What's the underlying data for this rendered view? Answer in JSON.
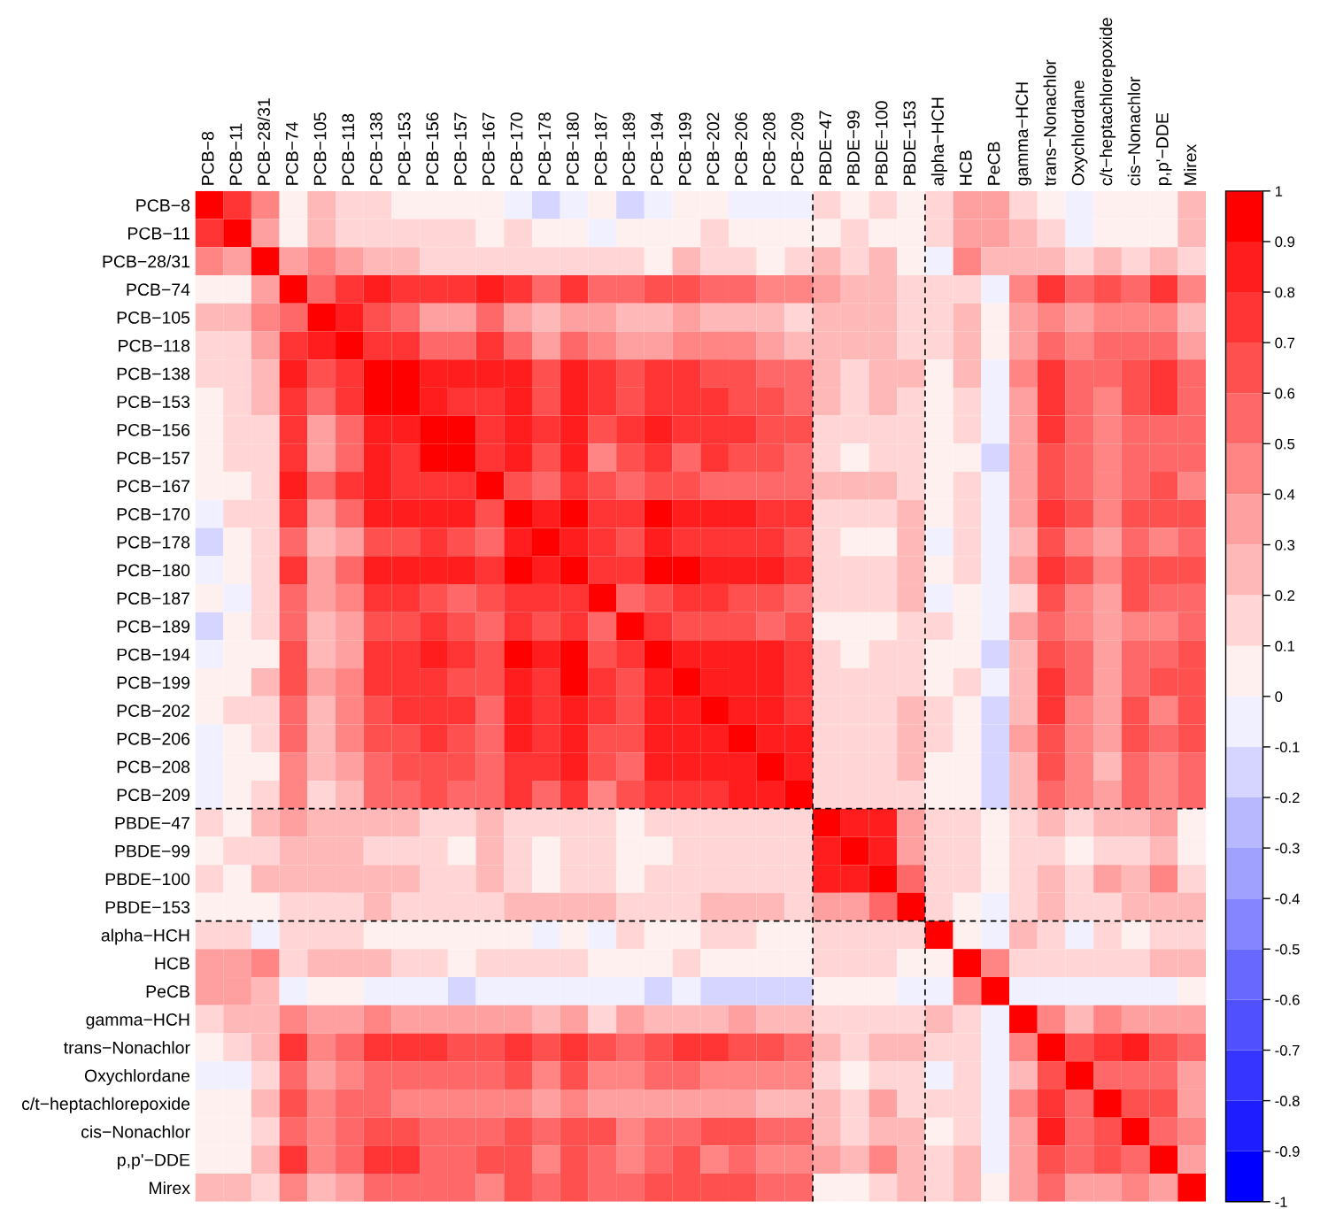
{
  "chart_data": {
    "type": "heatmap",
    "categories": [
      "PCB−8",
      "PCB−11",
      "PCB−28/31",
      "PCB−74",
      "PCB−105",
      "PCB−118",
      "PCB−138",
      "PCB−153",
      "PCB−156",
      "PCB−157",
      "PCB−167",
      "PCB−170",
      "PCB−178",
      "PCB−180",
      "PCB−187",
      "PCB−189",
      "PCB−194",
      "PCB−199",
      "PCB−202",
      "PCB−206",
      "PCB−208",
      "PCB−209",
      "PBDE−47",
      "PBDE−99",
      "PBDE−100",
      "PBDE−153",
      "alpha−HCH",
      "HCB",
      "PeCB",
      "gamma−HCH",
      "trans−Nonachlor",
      "Oxychlordane",
      "c/t−heptachlorepoxide",
      "cis−Nonachlor",
      "p,p'−DDE",
      "Mirex"
    ],
    "y_categories": [
      "PCB−8",
      "PCB−11",
      "PCB−28/31",
      "PCB−74",
      "PCB−105",
      "PCB−118",
      "PCB−138",
      "PCB−153",
      "PCB−156",
      "PCB−157",
      "PCB−167",
      "PCB−170",
      "PCB−178",
      "PCB−180",
      "PCB−187",
      "PCB−189",
      "PCB−194",
      "PCB−199",
      "PCB−202",
      "PCB−206",
      "PCB−208",
      "PCB−209",
      "PBDE−47",
      "PBDE−99",
      "PBDE−100",
      "PBDE−153",
      "alpha−HCH",
      "HCB",
      "PeCB",
      "gamma−HCH",
      "trans−Nonachlor",
      "Oxychlordane",
      "c/t−heptachlorepoxide",
      "cis−Nonachlor",
      "p,p'−DDE",
      "Mirex"
    ],
    "cells": [
      [
        1,
        0.75,
        0.45,
        0.05,
        0.25,
        0.15,
        0.15,
        0.05,
        0.05,
        0.05,
        0.05,
        -0.05,
        -0.15,
        -0.05,
        0.05,
        -0.15,
        -0.05,
        0.05,
        0.05,
        -0.05,
        -0.05,
        -0.05,
        0.15,
        0.05,
        0.15,
        0.05,
        0.15,
        0.35,
        0.35,
        0.15,
        0.05,
        -0.05,
        0.05,
        0.05,
        0.05,
        0.25
      ],
      [
        0.75,
        1,
        0.35,
        0.05,
        0.25,
        0.15,
        0.15,
        0.15,
        0.15,
        0.15,
        0.05,
        0.15,
        0.05,
        0.05,
        -0.05,
        0.05,
        0.05,
        0.05,
        0.15,
        0.05,
        0.05,
        0.05,
        0.05,
        0.15,
        0.05,
        0.05,
        0.15,
        0.35,
        0.35,
        0.25,
        0.15,
        -0.05,
        0.05,
        0.05,
        0.05,
        0.25
      ],
      [
        0.45,
        0.35,
        1,
        0.35,
        0.45,
        0.35,
        0.25,
        0.25,
        0.15,
        0.15,
        0.15,
        0.15,
        0.15,
        0.15,
        0.15,
        0.15,
        0.05,
        0.25,
        0.15,
        0.15,
        0.05,
        0.15,
        0.25,
        0.15,
        0.25,
        0.05,
        -0.05,
        0.45,
        0.25,
        0.25,
        0.25,
        0.15,
        0.25,
        0.15,
        0.25,
        0.15
      ],
      [
        0.05,
        0.05,
        0.35,
        1,
        0.55,
        0.75,
        0.85,
        0.75,
        0.75,
        0.75,
        0.85,
        0.75,
        0.55,
        0.75,
        0.55,
        0.55,
        0.65,
        0.65,
        0.55,
        0.55,
        0.45,
        0.45,
        0.35,
        0.25,
        0.25,
        0.15,
        0.15,
        0.15,
        -0.05,
        0.45,
        0.75,
        0.55,
        0.65,
        0.55,
        0.75,
        0.45
      ],
      [
        0.25,
        0.25,
        0.45,
        0.55,
        1,
        0.85,
        0.65,
        0.55,
        0.35,
        0.35,
        0.55,
        0.35,
        0.25,
        0.35,
        0.35,
        0.25,
        0.25,
        0.35,
        0.25,
        0.25,
        0.25,
        0.15,
        0.25,
        0.25,
        0.25,
        0.15,
        0.15,
        0.25,
        0.05,
        0.35,
        0.45,
        0.35,
        0.45,
        0.45,
        0.45,
        0.25
      ],
      [
        0.15,
        0.15,
        0.35,
        0.75,
        0.85,
        1,
        0.75,
        0.75,
        0.55,
        0.55,
        0.75,
        0.55,
        0.35,
        0.55,
        0.45,
        0.35,
        0.35,
        0.45,
        0.45,
        0.45,
        0.35,
        0.25,
        0.25,
        0.25,
        0.25,
        0.15,
        0.15,
        0.25,
        0.05,
        0.35,
        0.55,
        0.45,
        0.55,
        0.55,
        0.55,
        0.35
      ],
      [
        0.15,
        0.15,
        0.25,
        0.85,
        0.65,
        0.75,
        1,
        0.95,
        0.85,
        0.85,
        0.85,
        0.85,
        0.65,
        0.85,
        0.75,
        0.65,
        0.75,
        0.75,
        0.65,
        0.65,
        0.55,
        0.55,
        0.25,
        0.15,
        0.25,
        0.25,
        0.05,
        0.25,
        -0.05,
        0.45,
        0.75,
        0.55,
        0.55,
        0.65,
        0.75,
        0.55
      ],
      [
        0.05,
        0.15,
        0.25,
        0.75,
        0.55,
        0.75,
        0.95,
        1,
        0.85,
        0.75,
        0.75,
        0.85,
        0.65,
        0.85,
        0.75,
        0.65,
        0.75,
        0.75,
        0.75,
        0.65,
        0.65,
        0.55,
        0.25,
        0.15,
        0.25,
        0.15,
        0.05,
        0.15,
        -0.05,
        0.35,
        0.75,
        0.55,
        0.45,
        0.65,
        0.75,
        0.55
      ],
      [
        0.05,
        0.15,
        0.15,
        0.75,
        0.35,
        0.55,
        0.85,
        0.85,
        1,
        0.95,
        0.75,
        0.85,
        0.75,
        0.85,
        0.65,
        0.75,
        0.85,
        0.75,
        0.75,
        0.75,
        0.65,
        0.65,
        0.15,
        0.15,
        0.15,
        0.15,
        0.05,
        0.15,
        -0.05,
        0.35,
        0.75,
        0.55,
        0.45,
        0.55,
        0.55,
        0.55
      ],
      [
        0.05,
        0.15,
        0.15,
        0.75,
        0.35,
        0.55,
        0.85,
        0.75,
        0.95,
        1,
        0.75,
        0.85,
        0.65,
        0.85,
        0.45,
        0.65,
        0.75,
        0.55,
        0.75,
        0.65,
        0.65,
        0.55,
        0.15,
        0.05,
        0.15,
        0.15,
        0.05,
        0.05,
        -0.15,
        0.35,
        0.65,
        0.55,
        0.45,
        0.55,
        0.55,
        0.55
      ],
      [
        0.05,
        0.05,
        0.15,
        0.85,
        0.55,
        0.75,
        0.85,
        0.75,
        0.75,
        0.75,
        1,
        0.65,
        0.55,
        0.75,
        0.65,
        0.55,
        0.65,
        0.65,
        0.55,
        0.55,
        0.55,
        0.55,
        0.25,
        0.25,
        0.25,
        0.15,
        0.05,
        0.15,
        -0.05,
        0.35,
        0.65,
        0.55,
        0.45,
        0.55,
        0.65,
        0.45
      ],
      [
        -0.05,
        0.15,
        0.15,
        0.75,
        0.35,
        0.55,
        0.85,
        0.85,
        0.85,
        0.85,
        0.65,
        1,
        0.85,
        0.95,
        0.75,
        0.75,
        0.95,
        0.85,
        0.85,
        0.85,
        0.75,
        0.75,
        0.15,
        0.15,
        0.15,
        0.25,
        0.05,
        0.15,
        -0.05,
        0.35,
        0.75,
        0.65,
        0.45,
        0.65,
        0.65,
        0.65
      ],
      [
        -0.15,
        0.05,
        0.15,
        0.55,
        0.25,
        0.35,
        0.65,
        0.65,
        0.75,
        0.65,
        0.55,
        0.85,
        1,
        0.85,
        0.75,
        0.65,
        0.85,
        0.75,
        0.75,
        0.75,
        0.75,
        0.65,
        0.15,
        0.05,
        0.05,
        0.25,
        -0.05,
        0.15,
        -0.05,
        0.25,
        0.65,
        0.45,
        0.35,
        0.55,
        0.45,
        0.55
      ],
      [
        -0.05,
        0.05,
        0.15,
        0.75,
        0.35,
        0.55,
        0.85,
        0.85,
        0.85,
        0.85,
        0.75,
        0.95,
        0.85,
        1,
        0.75,
        0.75,
        0.95,
        0.95,
        0.85,
        0.85,
        0.85,
        0.75,
        0.15,
        0.15,
        0.15,
        0.25,
        0.05,
        0.15,
        -0.05,
        0.35,
        0.75,
        0.65,
        0.45,
        0.65,
        0.65,
        0.65
      ],
      [
        0.05,
        -0.05,
        0.15,
        0.55,
        0.35,
        0.45,
        0.75,
        0.75,
        0.65,
        0.55,
        0.65,
        0.75,
        0.75,
        0.75,
        1,
        0.55,
        0.65,
        0.75,
        0.75,
        0.65,
        0.65,
        0.55,
        0.15,
        0.15,
        0.15,
        0.25,
        -0.05,
        0.05,
        -0.05,
        0.15,
        0.65,
        0.45,
        0.35,
        0.65,
        0.55,
        0.55
      ],
      [
        -0.15,
        0.05,
        0.15,
        0.55,
        0.25,
        0.35,
        0.65,
        0.65,
        0.75,
        0.65,
        0.55,
        0.75,
        0.65,
        0.75,
        0.55,
        1,
        0.75,
        0.65,
        0.65,
        0.65,
        0.55,
        0.65,
        0.05,
        0.05,
        0.05,
        0.15,
        0.15,
        0.05,
        -0.05,
        0.35,
        0.55,
        0.45,
        0.35,
        0.45,
        0.45,
        0.55
      ],
      [
        -0.05,
        0.05,
        0.05,
        0.65,
        0.25,
        0.35,
        0.75,
        0.75,
        0.85,
        0.75,
        0.65,
        0.95,
        0.85,
        0.95,
        0.65,
        0.75,
        1,
        0.85,
        0.85,
        0.85,
        0.85,
        0.75,
        0.15,
        0.05,
        0.15,
        0.15,
        0.05,
        0.05,
        -0.15,
        0.25,
        0.65,
        0.55,
        0.35,
        0.55,
        0.55,
        0.65
      ],
      [
        0.05,
        0.05,
        0.25,
        0.65,
        0.35,
        0.45,
        0.75,
        0.75,
        0.75,
        0.65,
        0.65,
        0.85,
        0.75,
        0.95,
        0.75,
        0.65,
        0.85,
        1,
        0.85,
        0.85,
        0.85,
        0.75,
        0.15,
        0.15,
        0.15,
        0.15,
        0.05,
        0.15,
        -0.05,
        0.25,
        0.75,
        0.55,
        0.35,
        0.55,
        0.65,
        0.65
      ],
      [
        0.05,
        0.15,
        0.15,
        0.55,
        0.25,
        0.45,
        0.65,
        0.75,
        0.75,
        0.75,
        0.55,
        0.85,
        0.75,
        0.85,
        0.75,
        0.65,
        0.85,
        0.85,
        1,
        0.85,
        0.85,
        0.75,
        0.15,
        0.15,
        0.15,
        0.25,
        0.15,
        0.05,
        -0.15,
        0.25,
        0.75,
        0.45,
        0.35,
        0.65,
        0.45,
        0.65
      ],
      [
        -0.05,
        0.05,
        0.15,
        0.55,
        0.25,
        0.45,
        0.65,
        0.65,
        0.75,
        0.65,
        0.55,
        0.85,
        0.75,
        0.85,
        0.65,
        0.65,
        0.85,
        0.85,
        0.85,
        1,
        0.85,
        0.85,
        0.15,
        0.15,
        0.15,
        0.25,
        0.15,
        0.05,
        -0.15,
        0.35,
        0.65,
        0.45,
        0.35,
        0.65,
        0.55,
        0.65
      ],
      [
        -0.05,
        0.05,
        0.05,
        0.45,
        0.25,
        0.35,
        0.55,
        0.65,
        0.65,
        0.65,
        0.55,
        0.75,
        0.75,
        0.85,
        0.65,
        0.55,
        0.85,
        0.85,
        0.85,
        0.85,
        1,
        0.85,
        0.15,
        0.15,
        0.15,
        0.25,
        0.05,
        0.05,
        -0.15,
        0.25,
        0.65,
        0.45,
        0.25,
        0.55,
        0.45,
        0.55
      ],
      [
        -0.05,
        0.05,
        0.15,
        0.45,
        0.15,
        0.25,
        0.55,
        0.55,
        0.65,
        0.55,
        0.55,
        0.75,
        0.55,
        0.75,
        0.45,
        0.65,
        0.75,
        0.75,
        0.75,
        0.85,
        0.85,
        1,
        0.15,
        0.15,
        0.15,
        0.15,
        0.05,
        0.05,
        -0.15,
        0.25,
        0.55,
        0.45,
        0.35,
        0.55,
        0.45,
        0.55
      ],
      [
        0.15,
        0.05,
        0.25,
        0.35,
        0.25,
        0.25,
        0.25,
        0.25,
        0.15,
        0.15,
        0.25,
        0.15,
        0.15,
        0.15,
        0.15,
        0.05,
        0.15,
        0.15,
        0.15,
        0.15,
        0.15,
        0.15,
        1,
        0.85,
        0.85,
        0.35,
        0.15,
        0.15,
        0.05,
        0.15,
        0.25,
        0.15,
        0.25,
        0.25,
        0.35,
        0.05
      ],
      [
        0.05,
        0.15,
        0.15,
        0.25,
        0.25,
        0.25,
        0.15,
        0.15,
        0.15,
        0.05,
        0.25,
        0.15,
        0.05,
        0.15,
        0.15,
        0.05,
        0.05,
        0.15,
        0.15,
        0.15,
        0.15,
        0.15,
        0.85,
        1,
        0.85,
        0.35,
        0.15,
        0.15,
        0.05,
        0.15,
        0.15,
        0.05,
        0.15,
        0.15,
        0.25,
        0.05
      ],
      [
        0.15,
        0.05,
        0.25,
        0.25,
        0.25,
        0.25,
        0.25,
        0.25,
        0.15,
        0.15,
        0.25,
        0.15,
        0.05,
        0.15,
        0.15,
        0.05,
        0.15,
        0.15,
        0.15,
        0.15,
        0.15,
        0.15,
        0.85,
        0.85,
        1,
        0.55,
        0.15,
        0.15,
        0.05,
        0.15,
        0.25,
        0.15,
        0.35,
        0.25,
        0.45,
        0.15
      ],
      [
        0.05,
        0.05,
        0.05,
        0.15,
        0.15,
        0.15,
        0.25,
        0.15,
        0.15,
        0.15,
        0.15,
        0.25,
        0.25,
        0.25,
        0.25,
        0.15,
        0.15,
        0.15,
        0.25,
        0.25,
        0.25,
        0.15,
        0.35,
        0.35,
        0.55,
        1,
        0.15,
        0.05,
        -0.05,
        0.15,
        0.25,
        0.15,
        0.15,
        0.25,
        0.25,
        0.25
      ],
      [
        0.15,
        0.15,
        -0.05,
        0.15,
        0.15,
        0.15,
        0.05,
        0.05,
        0.05,
        0.05,
        0.05,
        0.05,
        -0.05,
        0.05,
        -0.05,
        0.15,
        0.05,
        0.05,
        0.15,
        0.15,
        0.05,
        0.05,
        0.15,
        0.15,
        0.15,
        0.15,
        1,
        0.05,
        -0.05,
        0.25,
        0.15,
        -0.05,
        0.15,
        0.05,
        0.15,
        0.15
      ],
      [
        0.35,
        0.35,
        0.45,
        0.15,
        0.25,
        0.25,
        0.25,
        0.15,
        0.15,
        0.05,
        0.15,
        0.15,
        0.15,
        0.15,
        0.05,
        0.05,
        0.05,
        0.15,
        0.05,
        0.05,
        0.05,
        0.05,
        0.15,
        0.15,
        0.15,
        0.05,
        0.05,
        1,
        0.45,
        0.15,
        0.15,
        0.15,
        0.15,
        0.15,
        0.25,
        0.25
      ],
      [
        0.35,
        0.35,
        0.25,
        -0.05,
        0.05,
        0.05,
        -0.05,
        -0.05,
        -0.05,
        -0.15,
        -0.05,
        -0.05,
        -0.05,
        -0.05,
        -0.05,
        -0.05,
        -0.15,
        -0.05,
        -0.15,
        -0.15,
        -0.15,
        -0.15,
        0.05,
        0.05,
        0.05,
        -0.05,
        -0.05,
        0.45,
        1,
        -0.05,
        -0.05,
        -0.05,
        -0.05,
        -0.05,
        -0.05,
        0.05
      ],
      [
        0.15,
        0.25,
        0.25,
        0.45,
        0.35,
        0.35,
        0.45,
        0.35,
        0.35,
        0.35,
        0.35,
        0.35,
        0.25,
        0.35,
        0.15,
        0.35,
        0.25,
        0.25,
        0.25,
        0.35,
        0.25,
        0.25,
        0.15,
        0.15,
        0.15,
        0.15,
        0.25,
        0.15,
        -0.05,
        1,
        0.45,
        0.25,
        0.45,
        0.35,
        0.35,
        0.35
      ],
      [
        0.05,
        0.15,
        0.25,
        0.75,
        0.45,
        0.55,
        0.75,
        0.75,
        0.75,
        0.65,
        0.65,
        0.75,
        0.65,
        0.75,
        0.65,
        0.55,
        0.65,
        0.75,
        0.75,
        0.65,
        0.65,
        0.55,
        0.25,
        0.15,
        0.25,
        0.25,
        0.15,
        0.15,
        -0.05,
        0.45,
        1,
        0.65,
        0.75,
        0.85,
        0.65,
        0.55
      ],
      [
        -0.05,
        -0.05,
        0.15,
        0.55,
        0.35,
        0.45,
        0.55,
        0.55,
        0.55,
        0.55,
        0.55,
        0.65,
        0.45,
        0.65,
        0.45,
        0.45,
        0.55,
        0.55,
        0.45,
        0.45,
        0.45,
        0.45,
        0.15,
        0.05,
        0.15,
        0.15,
        -0.05,
        0.15,
        -0.05,
        0.25,
        0.65,
        1,
        0.55,
        0.55,
        0.55,
        0.35
      ],
      [
        0.05,
        0.05,
        0.25,
        0.65,
        0.45,
        0.55,
        0.55,
        0.45,
        0.45,
        0.45,
        0.45,
        0.45,
        0.35,
        0.45,
        0.35,
        0.35,
        0.35,
        0.35,
        0.35,
        0.35,
        0.25,
        0.25,
        0.25,
        0.15,
        0.35,
        0.15,
        0.15,
        0.15,
        -0.05,
        0.45,
        0.75,
        0.55,
        1,
        0.65,
        0.65,
        0.35
      ],
      [
        0.05,
        0.05,
        0.15,
        0.55,
        0.45,
        0.55,
        0.65,
        0.65,
        0.55,
        0.55,
        0.55,
        0.65,
        0.55,
        0.65,
        0.65,
        0.45,
        0.55,
        0.55,
        0.65,
        0.65,
        0.55,
        0.55,
        0.25,
        0.15,
        0.25,
        0.25,
        0.05,
        0.15,
        -0.05,
        0.35,
        0.85,
        0.55,
        0.65,
        1,
        0.55,
        0.45
      ],
      [
        0.05,
        0.05,
        0.25,
        0.75,
        0.45,
        0.55,
        0.75,
        0.75,
        0.55,
        0.55,
        0.65,
        0.65,
        0.45,
        0.65,
        0.55,
        0.45,
        0.55,
        0.65,
        0.45,
        0.55,
        0.45,
        0.45,
        0.35,
        0.25,
        0.45,
        0.25,
        0.15,
        0.25,
        -0.05,
        0.35,
        0.65,
        0.55,
        0.65,
        0.55,
        1,
        0.35
      ],
      [
        0.25,
        0.25,
        0.15,
        0.45,
        0.25,
        0.35,
        0.55,
        0.55,
        0.55,
        0.55,
        0.45,
        0.65,
        0.55,
        0.65,
        0.55,
        0.55,
        0.65,
        0.65,
        0.65,
        0.65,
        0.55,
        0.55,
        0.05,
        0.05,
        0.15,
        0.25,
        0.15,
        0.25,
        0.05,
        0.35,
        0.55,
        0.35,
        0.35,
        0.45,
        0.35,
        1
      ]
    ],
    "colors": [
      "#0000ff",
      "#1d1dff",
      "#3535ff",
      "#5050ff",
      "#6868ff",
      "#8585ff",
      "#a0a0ff",
      "#b8b8ff",
      "#d5d5ff",
      "#f0f0ff",
      "#fff0f0",
      "#ffd5d5",
      "#ffb8b8",
      "#ffa0a0",
      "#ff8585",
      "#ff6868",
      "#ff5050",
      "#ff3535",
      "#ff1d1d",
      "#ff0000"
    ],
    "clim": [
      -1,
      1
    ],
    "cticks": [
      1,
      0.9,
      0.8,
      0.7,
      0.6,
      0.5,
      0.4,
      0.3,
      0.2,
      0.1,
      0,
      -0.1,
      -0.2,
      -0.3,
      -0.4,
      -0.5,
      -0.6,
      -0.7,
      -0.8,
      -0.9,
      -1
    ]
  }
}
